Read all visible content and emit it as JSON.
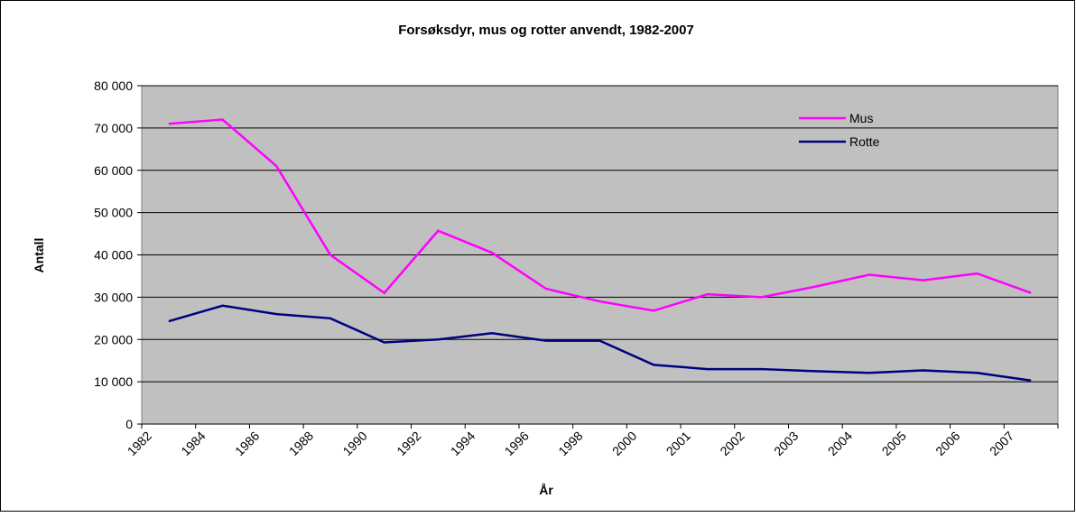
{
  "chart_data": {
    "type": "line",
    "title": "Forsøksdyr, mus og rotter anvendt, 1982-2007",
    "x_label": "År",
    "y_label": "Antall",
    "categories": [
      "1982",
      "1984",
      "1986",
      "1988",
      "1990",
      "1992",
      "1994",
      "1996",
      "1998",
      "2000",
      "2001",
      "2002",
      "2003",
      "2004",
      "2005",
      "2006",
      "2007"
    ],
    "series": [
      {
        "name": "Mus",
        "color": "#ff00ff",
        "values": [
          71000,
          72000,
          61000,
          40000,
          31000,
          45700,
          40500,
          32000,
          29000,
          26800,
          30700,
          30000,
          32500,
          35300,
          34000,
          35600,
          31000
        ]
      },
      {
        "name": "Rotte",
        "color": "#000080",
        "values": [
          24300,
          28000,
          26000,
          25000,
          19300,
          20000,
          21500,
          19700,
          19700,
          14000,
          13000,
          13000,
          12500,
          12100,
          12700,
          12100,
          10300
        ]
      }
    ],
    "ylim": [
      0,
      80000
    ],
    "yticks": [
      {
        "value": 0,
        "label": "0"
      },
      {
        "value": 10000,
        "label": "10 000"
      },
      {
        "value": 20000,
        "label": "20 000"
      },
      {
        "value": 30000,
        "label": "30 000"
      },
      {
        "value": 40000,
        "label": "40 000"
      },
      {
        "value": 50000,
        "label": "50 000"
      },
      {
        "value": 60000,
        "label": "60 000"
      },
      {
        "value": 70000,
        "label": "70 000"
      },
      {
        "value": 80000,
        "label": "80 000"
      }
    ],
    "grid": true,
    "legend": "top-right",
    "plot_background": "#c0c0c0"
  }
}
